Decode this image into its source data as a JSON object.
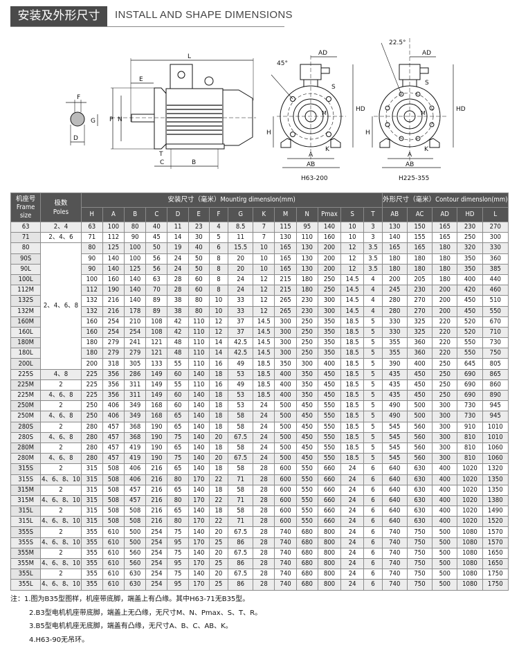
{
  "title": {
    "cn": "安装及外形尺寸",
    "en": "INSTALL AND SHAPE DIMENSIONS"
  },
  "drawings": {
    "side_labels": {
      "L": "L",
      "E": "E",
      "F": "F",
      "G": "G",
      "D": "D",
      "P": "P",
      "N": "N",
      "T": "T",
      "C": "C",
      "B": "B"
    },
    "front1": {
      "caption": "H63-200",
      "angle": "45°",
      "AD": "AD",
      "HD": "HD",
      "S": "S",
      "M": "M",
      "H": "H",
      "K": "K",
      "A": "A",
      "AB": "AB"
    },
    "front2": {
      "caption": "H225-355",
      "angle": "22.5°",
      "AD": "AD",
      "HD": "HD",
      "S": "S",
      "M": "M",
      "H": "H",
      "K": "K",
      "A": "A",
      "AB": "AB"
    }
  },
  "table": {
    "frame_header": "机座号\nFrame\nsize",
    "frame_header_lines": [
      "机座号",
      "Frame",
      "size"
    ],
    "poles_header_lines": [
      "极数",
      "Poles"
    ],
    "mounting_header": "安装尺寸（毫米）Mountirg dimenslon(mm)",
    "contour_header": "外形尺寸（毫米）Contour dimenslon(mm)",
    "mounting_columns": [
      "H",
      "A",
      "B",
      "C",
      "D",
      "E",
      "F",
      "G",
      "K",
      "M",
      "N",
      "Pmax",
      "S",
      "T"
    ],
    "contour_columns": [
      "AB",
      "AC",
      "AD",
      "HD",
      "L"
    ],
    "merged_poles_label": "2、4、6、8",
    "rows": [
      {
        "frame": "63",
        "poles": "2、4",
        "v": [
          "63",
          "100",
          "80",
          "40",
          "11",
          "23",
          "4",
          "8.5",
          "7",
          "115",
          "95",
          "140",
          "10",
          "3",
          "130",
          "150",
          "165",
          "230",
          "270"
        ]
      },
      {
        "frame": "71",
        "poles": "2、4、6",
        "v": [
          "71",
          "112",
          "90",
          "45",
          "14",
          "30",
          "5",
          "11",
          "7",
          "130",
          "110",
          "160",
          "10",
          "3",
          "140",
          "155",
          "165",
          "250",
          "300"
        ]
      },
      {
        "frame": "80",
        "poles": null,
        "v": [
          "80",
          "125",
          "100",
          "50",
          "19",
          "40",
          "6",
          "15.5",
          "10",
          "165",
          "130",
          "200",
          "12",
          "3.5",
          "165",
          "165",
          "180",
          "320",
          "330"
        ]
      },
      {
        "frame": "90S",
        "poles": null,
        "v": [
          "90",
          "140",
          "100",
          "56",
          "24",
          "50",
          "8",
          "20",
          "10",
          "165",
          "130",
          "200",
          "12",
          "3.5",
          "180",
          "180",
          "180",
          "350",
          "360"
        ]
      },
      {
        "frame": "90L",
        "poles": null,
        "v": [
          "90",
          "140",
          "125",
          "56",
          "24",
          "50",
          "8",
          "20",
          "10",
          "165",
          "130",
          "200",
          "12",
          "3.5",
          "180",
          "180",
          "180",
          "350",
          "385"
        ]
      },
      {
        "frame": "100L",
        "poles": null,
        "v": [
          "100",
          "160",
          "140",
          "63",
          "28",
          "60",
          "8",
          "24",
          "12",
          "215",
          "180",
          "250",
          "14.5",
          "4",
          "200",
          "205",
          "180",
          "400",
          "440"
        ]
      },
      {
        "frame": "112M",
        "poles": null,
        "v": [
          "112",
          "190",
          "140",
          "70",
          "28",
          "60",
          "8",
          "24",
          "12",
          "215",
          "180",
          "250",
          "14.5",
          "4",
          "245",
          "230",
          "200",
          "420",
          "460"
        ]
      },
      {
        "frame": "132S",
        "poles": null,
        "v": [
          "132",
          "216",
          "140",
          "89",
          "38",
          "80",
          "10",
          "33",
          "12",
          "265",
          "230",
          "300",
          "14.5",
          "4",
          "280",
          "270",
          "200",
          "450",
          "510"
        ]
      },
      {
        "frame": "132M",
        "poles": null,
        "v": [
          "132",
          "216",
          "178",
          "89",
          "38",
          "80",
          "10",
          "33",
          "12",
          "265",
          "230",
          "300",
          "14.5",
          "4",
          "280",
          "270",
          "200",
          "450",
          "550"
        ]
      },
      {
        "frame": "160M",
        "poles": null,
        "v": [
          "160",
          "254",
          "210",
          "108",
          "42",
          "110",
          "12",
          "37",
          "14.5",
          "300",
          "250",
          "350",
          "18.5",
          "5",
          "330",
          "325",
          "220",
          "520",
          "670"
        ]
      },
      {
        "frame": "160L",
        "poles": null,
        "v": [
          "160",
          "254",
          "254",
          "108",
          "42",
          "110",
          "12",
          "37",
          "14.5",
          "300",
          "250",
          "350",
          "18.5",
          "5",
          "330",
          "325",
          "220",
          "520",
          "710"
        ]
      },
      {
        "frame": "180M",
        "poles": null,
        "v": [
          "180",
          "279",
          "241",
          "121",
          "48",
          "110",
          "14",
          "42.5",
          "14.5",
          "300",
          "250",
          "350",
          "18.5",
          "5",
          "355",
          "360",
          "220",
          "550",
          "730"
        ]
      },
      {
        "frame": "180L",
        "poles": null,
        "v": [
          "180",
          "279",
          "279",
          "121",
          "48",
          "110",
          "14",
          "42.5",
          "14.5",
          "300",
          "250",
          "350",
          "18.5",
          "5",
          "355",
          "360",
          "220",
          "550",
          "750"
        ]
      },
      {
        "frame": "200L",
        "poles": null,
        "v": [
          "200",
          "318",
          "305",
          "133",
          "55",
          "110",
          "16",
          "49",
          "18.5",
          "350",
          "300",
          "400",
          "18.5",
          "5",
          "390",
          "400",
          "250",
          "645",
          "805"
        ]
      },
      {
        "frame": "225S",
        "poles": "4、8",
        "v": [
          "225",
          "356",
          "286",
          "149",
          "60",
          "140",
          "18",
          "53",
          "18.5",
          "400",
          "350",
          "450",
          "18.5",
          "5",
          "435",
          "450",
          "250",
          "690",
          "865"
        ]
      },
      {
        "frame": "225M",
        "poles": "2",
        "v": [
          "225",
          "356",
          "311",
          "149",
          "55",
          "110",
          "16",
          "49",
          "18.5",
          "400",
          "350",
          "450",
          "18.5",
          "5",
          "435",
          "450",
          "250",
          "690",
          "860"
        ]
      },
      {
        "frame": "225M",
        "poles": "4、6、8",
        "v": [
          "225",
          "356",
          "311",
          "149",
          "60",
          "140",
          "18",
          "53",
          "18.5",
          "400",
          "350",
          "450",
          "18.5",
          "5",
          "435",
          "450",
          "250",
          "690",
          "890"
        ]
      },
      {
        "frame": "250M",
        "poles": "2",
        "v": [
          "250",
          "406",
          "349",
          "168",
          "60",
          "140",
          "18",
          "53",
          "24",
          "500",
          "450",
          "550",
          "18.5",
          "5",
          "490",
          "500",
          "300",
          "730",
          "945"
        ]
      },
      {
        "frame": "250M",
        "poles": "4、6、8",
        "v": [
          "250",
          "406",
          "349",
          "168",
          "65",
          "140",
          "18",
          "58",
          "24",
          "500",
          "450",
          "550",
          "18.5",
          "5",
          "490",
          "500",
          "300",
          "730",
          "945"
        ]
      },
      {
        "frame": "280S",
        "poles": "2",
        "v": [
          "280",
          "457",
          "368",
          "190",
          "65",
          "140",
          "18",
          "58",
          "24",
          "500",
          "450",
          "550",
          "18.5",
          "5",
          "545",
          "560",
          "300",
          "910",
          "1010"
        ]
      },
      {
        "frame": "280S",
        "poles": "4、6、8",
        "v": [
          "280",
          "457",
          "368",
          "190",
          "75",
          "140",
          "20",
          "67.5",
          "24",
          "500",
          "450",
          "550",
          "18.5",
          "5",
          "545",
          "560",
          "300",
          "810",
          "1010"
        ]
      },
      {
        "frame": "280M",
        "poles": "2",
        "v": [
          "280",
          "457",
          "419",
          "190",
          "65",
          "140",
          "18",
          "58",
          "24",
          "500",
          "450",
          "550",
          "18.5",
          "5",
          "545",
          "560",
          "300",
          "810",
          "1060"
        ]
      },
      {
        "frame": "280M",
        "poles": "4、6、8",
        "v": [
          "280",
          "457",
          "419",
          "190",
          "75",
          "140",
          "20",
          "67.5",
          "24",
          "500",
          "450",
          "550",
          "18.5",
          "5",
          "545",
          "560",
          "300",
          "810",
          "1060"
        ]
      },
      {
        "frame": "315S",
        "poles": "2",
        "v": [
          "315",
          "508",
          "406",
          "216",
          "65",
          "140",
          "18",
          "58",
          "28",
          "600",
          "550",
          "660",
          "24",
          "6",
          "640",
          "630",
          "400",
          "1020",
          "1320"
        ]
      },
      {
        "frame": "315S",
        "poles": "4、6、8、10",
        "v": [
          "315",
          "508",
          "406",
          "216",
          "80",
          "170",
          "22",
          "71",
          "28",
          "600",
          "550",
          "660",
          "24",
          "6",
          "640",
          "630",
          "400",
          "1020",
          "1350"
        ]
      },
      {
        "frame": "315M",
        "poles": "2",
        "v": [
          "315",
          "508",
          "457",
          "216",
          "65",
          "140",
          "18",
          "58",
          "28",
          "600",
          "550",
          "660",
          "24",
          "6",
          "640",
          "630",
          "400",
          "1020",
          "1350"
        ]
      },
      {
        "frame": "315M",
        "poles": "4、6、8、10",
        "v": [
          "315",
          "508",
          "457",
          "216",
          "80",
          "170",
          "22",
          "71",
          "28",
          "600",
          "550",
          "660",
          "24",
          "6",
          "640",
          "630",
          "400",
          "1020",
          "1380"
        ]
      },
      {
        "frame": "315L",
        "poles": "2",
        "v": [
          "315",
          "508",
          "508",
          "216",
          "65",
          "140",
          "18",
          "58",
          "28",
          "600",
          "550",
          "660",
          "24",
          "6",
          "640",
          "630",
          "400",
          "1020",
          "1490"
        ]
      },
      {
        "frame": "315L",
        "poles": "4、6、8、10",
        "v": [
          "315",
          "508",
          "508",
          "216",
          "80",
          "170",
          "22",
          "71",
          "28",
          "600",
          "550",
          "660",
          "24",
          "6",
          "640",
          "630",
          "400",
          "1020",
          "1520"
        ]
      },
      {
        "frame": "355S",
        "poles": "2",
        "v": [
          "355",
          "610",
          "500",
          "254",
          "75",
          "140",
          "20",
          "67.5",
          "28",
          "740",
          "680",
          "800",
          "24",
          "6",
          "740",
          "750",
          "500",
          "1080",
          "1570"
        ]
      },
      {
        "frame": "355S",
        "poles": "4、6、8、10",
        "v": [
          "355",
          "610",
          "500",
          "254",
          "95",
          "170",
          "25",
          "86",
          "28",
          "740",
          "680",
          "800",
          "24",
          "6",
          "740",
          "750",
          "500",
          "1080",
          "1570"
        ]
      },
      {
        "frame": "355M",
        "poles": "2",
        "v": [
          "355",
          "610",
          "560",
          "254",
          "75",
          "140",
          "20",
          "67.5",
          "28",
          "740",
          "680",
          "800",
          "24",
          "6",
          "740",
          "750",
          "500",
          "1080",
          "1650"
        ]
      },
      {
        "frame": "355M",
        "poles": "4、6、8、10",
        "v": [
          "355",
          "610",
          "560",
          "254",
          "95",
          "170",
          "25",
          "86",
          "28",
          "740",
          "680",
          "800",
          "24",
          "6",
          "740",
          "750",
          "500",
          "1080",
          "1650"
        ]
      },
      {
        "frame": "355L",
        "poles": "2",
        "v": [
          "355",
          "610",
          "630",
          "254",
          "75",
          "140",
          "20",
          "67.5",
          "28",
          "740",
          "680",
          "800",
          "24",
          "6",
          "740",
          "750",
          "500",
          "1080",
          "1750"
        ]
      },
      {
        "frame": "355L",
        "poles": "4、6、8、10",
        "v": [
          "355",
          "610",
          "630",
          "254",
          "95",
          "170",
          "25",
          "86",
          "28",
          "740",
          "680",
          "800",
          "24",
          "6",
          "740",
          "750",
          "500",
          "1080",
          "1750"
        ]
      }
    ]
  },
  "notes": [
    "注：1.图为B35型图样，机座带底脚，端盖上有凸缘。其中H63-71无B35型。",
    "2.B3型电机机座带底脚，端盖上无凸缘，无尺寸M、N、Pmax、S、T、R。",
    "3.B5型电机机座无底脚，端盖有凸缘，无尺寸A、B、C、AB、K。",
    "4.H63-90无吊环。"
  ]
}
